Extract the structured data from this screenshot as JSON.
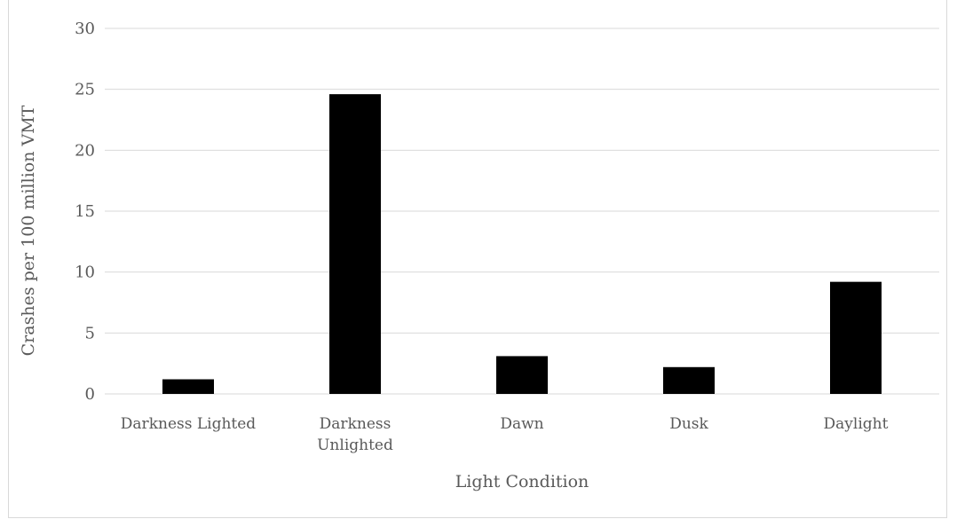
{
  "chart_data": {
    "type": "bar",
    "title": "",
    "categories": [
      [
        "Darkness Lighted"
      ],
      [
        "Darkness",
        "Unlighted"
      ],
      [
        "Dawn"
      ],
      [
        "Dusk"
      ],
      [
        "Daylight"
      ]
    ],
    "values": [
      1.2,
      24.6,
      3.1,
      2.2,
      9.2
    ],
    "xlabel": "Light Condition",
    "ylabel": "Crashes per 100 million VMT",
    "ylim": [
      0,
      30
    ],
    "yticks": [
      0,
      5,
      10,
      15,
      20,
      25,
      30
    ],
    "grid": true,
    "legend": "none",
    "colors": {
      "bar": "#000000",
      "grid": "#d9d9d9",
      "text": "#595959"
    }
  }
}
